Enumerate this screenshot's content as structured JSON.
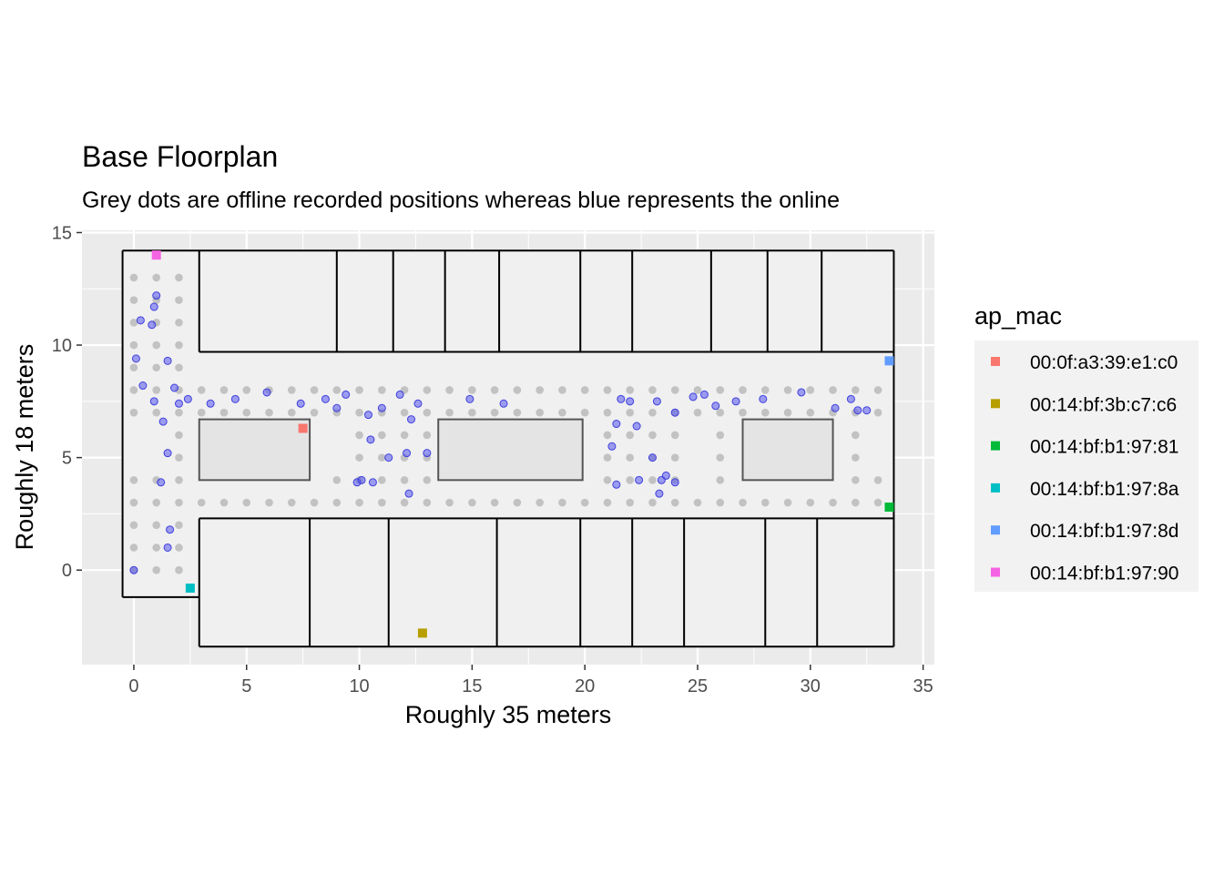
{
  "chart_data": {
    "type": "scatter",
    "title": "Base Floorplan",
    "subtitle": "Grey dots are offline recorded positions whereas blue represents the online",
    "xlabel": "Roughly 35 meters",
    "ylabel": "Roughly 18 meters",
    "xlim": [
      -2.3,
      35.5
    ],
    "ylim": [
      -4.2,
      15.1
    ],
    "xticks": [
      0,
      5,
      10,
      15,
      20,
      25,
      30,
      35
    ],
    "yticks": [
      0,
      5,
      10,
      15
    ],
    "grid": true,
    "legend": {
      "title": "ap_mac",
      "position": "right",
      "entries": [
        {
          "label": "00:0f:a3:39:e1:c0",
          "color": "#F8766D",
          "x": 7.5,
          "y": 6.3
        },
        {
          "label": "00:14:bf:3b:c7:c6",
          "color": "#B79F00",
          "x": 12.8,
          "y": -2.8
        },
        {
          "label": "00:14:bf:b1:97:81",
          "color": "#00BA38",
          "x": 33.5,
          "y": 2.8
        },
        {
          "label": "00:14:bf:b1:97:8a",
          "color": "#00BFC4",
          "x": 2.5,
          "y": -0.8
        },
        {
          "label": "00:14:bf:b1:97:8d",
          "color": "#619CFF",
          "x": 33.5,
          "y": 9.3
        },
        {
          "label": "00:14:bf:b1:97:90",
          "color": "#F564E3",
          "x": 1.0,
          "y": 14.0
        }
      ]
    },
    "offline_color": "#bdbdbd",
    "online_color": "#5555ee",
    "offline_points": [
      [
        0,
        13
      ],
      [
        0,
        12
      ],
      [
        0,
        11
      ],
      [
        0,
        10
      ],
      [
        0,
        9
      ],
      [
        0,
        8
      ],
      [
        0,
        7
      ],
      [
        0,
        4
      ],
      [
        0,
        3
      ],
      [
        0,
        2
      ],
      [
        0,
        1
      ],
      [
        0,
        0
      ],
      [
        1,
        13
      ],
      [
        1,
        12
      ],
      [
        1,
        11
      ],
      [
        1,
        10
      ],
      [
        1,
        9
      ],
      [
        1,
        8
      ],
      [
        1,
        7
      ],
      [
        1,
        4
      ],
      [
        1,
        3
      ],
      [
        1,
        2
      ],
      [
        1,
        1
      ],
      [
        1,
        0
      ],
      [
        2,
        13
      ],
      [
        2,
        12
      ],
      [
        2,
        11
      ],
      [
        2,
        10
      ],
      [
        2,
        9
      ],
      [
        2,
        8
      ],
      [
        2,
        7
      ],
      [
        2,
        6
      ],
      [
        2,
        5
      ],
      [
        2,
        4
      ],
      [
        2,
        3
      ],
      [
        2,
        2
      ],
      [
        2,
        1
      ],
      [
        2,
        0
      ],
      [
        3,
        8
      ],
      [
        3,
        7
      ],
      [
        3,
        3
      ],
      [
        4,
        8
      ],
      [
        4,
        7
      ],
      [
        4,
        3
      ],
      [
        5,
        8
      ],
      [
        5,
        7
      ],
      [
        5,
        3
      ],
      [
        6,
        8
      ],
      [
        6,
        7
      ],
      [
        6,
        3
      ],
      [
        7,
        8
      ],
      [
        7,
        7
      ],
      [
        7,
        3
      ],
      [
        8,
        8
      ],
      [
        8,
        7
      ],
      [
        8,
        3
      ],
      [
        9,
        8
      ],
      [
        9,
        7
      ],
      [
        9,
        4
      ],
      [
        9,
        3
      ],
      [
        10,
        8
      ],
      [
        10,
        7
      ],
      [
        10,
        6
      ],
      [
        10,
        5
      ],
      [
        10,
        4
      ],
      [
        10,
        3
      ],
      [
        11,
        8
      ],
      [
        11,
        7
      ],
      [
        11,
        6
      ],
      [
        11,
        5
      ],
      [
        11,
        4
      ],
      [
        11,
        3
      ],
      [
        12,
        8
      ],
      [
        12,
        7
      ],
      [
        12,
        6
      ],
      [
        12,
        5
      ],
      [
        12,
        4
      ],
      [
        12,
        3
      ],
      [
        13,
        8
      ],
      [
        13,
        7
      ],
      [
        13,
        6
      ],
      [
        13,
        5
      ],
      [
        13,
        4
      ],
      [
        13,
        3
      ],
      [
        14,
        8
      ],
      [
        14,
        7
      ],
      [
        14,
        3
      ],
      [
        15,
        8
      ],
      [
        15,
        7
      ],
      [
        15,
        3
      ],
      [
        16,
        8
      ],
      [
        16,
        7
      ],
      [
        16,
        3
      ],
      [
        17,
        8
      ],
      [
        17,
        7
      ],
      [
        17,
        3
      ],
      [
        18,
        8
      ],
      [
        18,
        7
      ],
      [
        18,
        3
      ],
      [
        19,
        8
      ],
      [
        19,
        7
      ],
      [
        19,
        3
      ],
      [
        20,
        8
      ],
      [
        20,
        7
      ],
      [
        20,
        3
      ],
      [
        21,
        8
      ],
      [
        21,
        7
      ],
      [
        21,
        6
      ],
      [
        21,
        5
      ],
      [
        21,
        4
      ],
      [
        21,
        3
      ],
      [
        22,
        8
      ],
      [
        22,
        7
      ],
      [
        22,
        6
      ],
      [
        22,
        5
      ],
      [
        22,
        4
      ],
      [
        22,
        3
      ],
      [
        23,
        8
      ],
      [
        23,
        7
      ],
      [
        23,
        6
      ],
      [
        23,
        5
      ],
      [
        23,
        4
      ],
      [
        23,
        3
      ],
      [
        24,
        8
      ],
      [
        24,
        7
      ],
      [
        24,
        6
      ],
      [
        24,
        5
      ],
      [
        24,
        4
      ],
      [
        24,
        3
      ],
      [
        25,
        8
      ],
      [
        25,
        7
      ],
      [
        25,
        3
      ],
      [
        26,
        8
      ],
      [
        26,
        7
      ],
      [
        26,
        6
      ],
      [
        26,
        5
      ],
      [
        26,
        4
      ],
      [
        26,
        3
      ],
      [
        27,
        8
      ],
      [
        27,
        7
      ],
      [
        27,
        3
      ],
      [
        28,
        8
      ],
      [
        28,
        7
      ],
      [
        28,
        3
      ],
      [
        29,
        8
      ],
      [
        29,
        7
      ],
      [
        29,
        3
      ],
      [
        30,
        8
      ],
      [
        30,
        7
      ],
      [
        30,
        3
      ],
      [
        31,
        8
      ],
      [
        31,
        7
      ],
      [
        31,
        3
      ],
      [
        32,
        8
      ],
      [
        32,
        7
      ],
      [
        32,
        6
      ],
      [
        32,
        5
      ],
      [
        32,
        4
      ],
      [
        32,
        3
      ],
      [
        33,
        8
      ],
      [
        33,
        7
      ],
      [
        33,
        4
      ],
      [
        33,
        3
      ]
    ],
    "online_points": [
      [
        0.3,
        11.1
      ],
      [
        0.8,
        10.9
      ],
      [
        0.9,
        11.7
      ],
      [
        1.0,
        12.2
      ],
      [
        0.1,
        9.4
      ],
      [
        0.4,
        8.2
      ],
      [
        0.9,
        7.5
      ],
      [
        1.2,
        3.9
      ],
      [
        1.3,
        6.6
      ],
      [
        1.5,
        9.3
      ],
      [
        1.5,
        5.2
      ],
      [
        1.6,
        1.8
      ],
      [
        1.5,
        1.0
      ],
      [
        1.8,
        8.1
      ],
      [
        2.0,
        7.4
      ],
      [
        2.4,
        7.6
      ],
      [
        0.0,
        0.0
      ],
      [
        3.4,
        7.4
      ],
      [
        4.5,
        7.6
      ],
      [
        5.9,
        7.9
      ],
      [
        7.4,
        7.4
      ],
      [
        8.5,
        7.6
      ],
      [
        9.0,
        7.2
      ],
      [
        9.4,
        7.8
      ],
      [
        9.9,
        3.9
      ],
      [
        10.1,
        4.0
      ],
      [
        10.4,
        6.9
      ],
      [
        10.5,
        5.8
      ],
      [
        10.6,
        3.9
      ],
      [
        11.0,
        7.2
      ],
      [
        11.3,
        5.0
      ],
      [
        11.8,
        7.8
      ],
      [
        12.1,
        5.2
      ],
      [
        12.3,
        6.7
      ],
      [
        12.2,
        3.4
      ],
      [
        12.6,
        7.4
      ],
      [
        13.0,
        5.2
      ],
      [
        14.9,
        7.6
      ],
      [
        16.4,
        7.4
      ],
      [
        21.2,
        5.5
      ],
      [
        21.4,
        6.5
      ],
      [
        21.4,
        3.8
      ],
      [
        21.6,
        7.6
      ],
      [
        22.0,
        7.5
      ],
      [
        22.3,
        6.4
      ],
      [
        22.4,
        4.0
      ],
      [
        23.0,
        5.0
      ],
      [
        23.2,
        7.5
      ],
      [
        23.3,
        3.4
      ],
      [
        23.4,
        4.0
      ],
      [
        23.6,
        4.2
      ],
      [
        24.0,
        7.0
      ],
      [
        24.0,
        3.9
      ],
      [
        24.8,
        7.7
      ],
      [
        25.3,
        7.8
      ],
      [
        25.8,
        7.3
      ],
      [
        26.7,
        7.5
      ],
      [
        27.9,
        7.6
      ],
      [
        29.6,
        7.9
      ],
      [
        31.1,
        7.2
      ],
      [
        31.8,
        7.6
      ],
      [
        32.1,
        7.1
      ],
      [
        32.5,
        7.1
      ]
    ],
    "walls": [
      [
        [
          -0.5,
          14.2
        ],
        [
          33.7,
          14.2
        ]
      ],
      [
        [
          33.7,
          14.2
        ],
        [
          33.7,
          -3.4
        ]
      ],
      [
        [
          33.7,
          -3.4
        ],
        [
          2.9,
          -3.4
        ]
      ],
      [
        [
          2.9,
          -3.4
        ],
        [
          2.9,
          -1.2
        ]
      ],
      [
        [
          2.9,
          -1.2
        ],
        [
          -0.5,
          -1.2
        ]
      ],
      [
        [
          -0.5,
          -1.2
        ],
        [
          -0.5,
          14.2
        ]
      ],
      [
        [
          2.9,
          9.7
        ],
        [
          33.7,
          9.7
        ]
      ],
      [
        [
          2.9,
          14.2
        ],
        [
          2.9,
          9.7
        ]
      ],
      [
        [
          9.0,
          14.2
        ],
        [
          9.0,
          9.7
        ]
      ],
      [
        [
          11.5,
          14.2
        ],
        [
          11.5,
          9.7
        ]
      ],
      [
        [
          13.8,
          14.2
        ],
        [
          13.8,
          9.7
        ]
      ],
      [
        [
          16.2,
          14.2
        ],
        [
          16.2,
          9.7
        ]
      ],
      [
        [
          19.8,
          14.2
        ],
        [
          19.8,
          9.7
        ]
      ],
      [
        [
          22.1,
          14.2
        ],
        [
          22.1,
          9.7
        ]
      ],
      [
        [
          25.6,
          14.2
        ],
        [
          25.6,
          9.7
        ]
      ],
      [
        [
          28.1,
          14.2
        ],
        [
          28.1,
          9.7
        ]
      ],
      [
        [
          30.5,
          14.2
        ],
        [
          30.5,
          9.7
        ]
      ],
      [
        [
          2.9,
          2.3
        ],
        [
          33.7,
          2.3
        ]
      ],
      [
        [
          2.9,
          2.3
        ],
        [
          2.9,
          -1.2
        ]
      ],
      [
        [
          7.8,
          2.3
        ],
        [
          7.8,
          -3.4
        ]
      ],
      [
        [
          11.3,
          2.3
        ],
        [
          11.3,
          -3.4
        ]
      ],
      [
        [
          16.1,
          2.3
        ],
        [
          16.1,
          -3.4
        ]
      ],
      [
        [
          19.8,
          2.3
        ],
        [
          19.8,
          -3.4
        ]
      ],
      [
        [
          22.1,
          2.3
        ],
        [
          22.1,
          -3.4
        ]
      ],
      [
        [
          24.4,
          2.3
        ],
        [
          24.4,
          -3.4
        ]
      ],
      [
        [
          28.0,
          2.3
        ],
        [
          28.0,
          -3.4
        ]
      ],
      [
        [
          30.3,
          2.3
        ],
        [
          30.3,
          -3.4
        ]
      ]
    ],
    "boxes": [
      [
        2.9,
        4.0,
        7.8,
        6.7
      ],
      [
        13.5,
        4.0,
        19.9,
        6.7
      ],
      [
        27.0,
        4.0,
        31.0,
        6.7
      ]
    ]
  }
}
